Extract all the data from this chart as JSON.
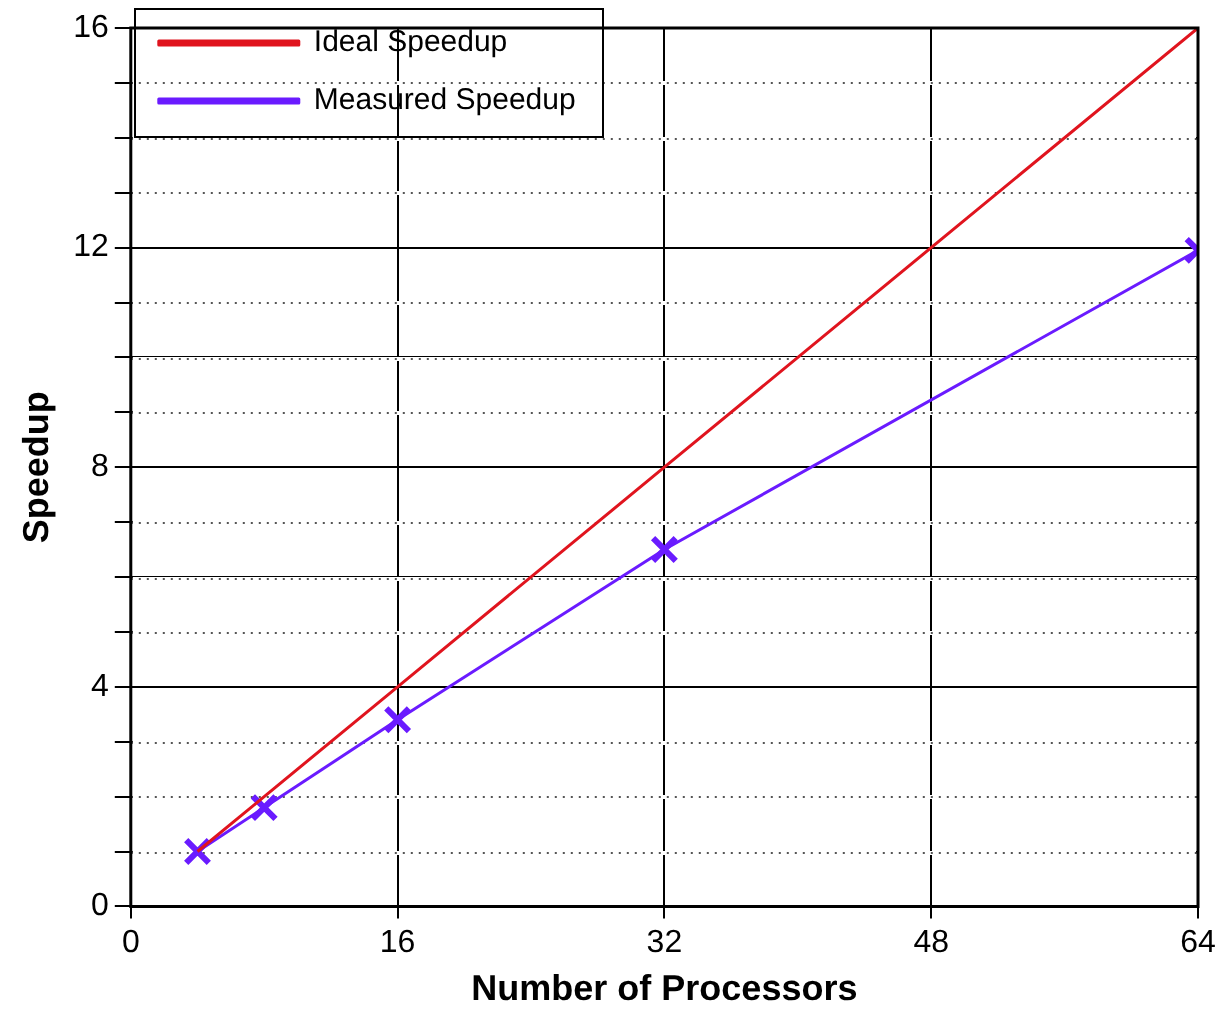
{
  "chart_data": {
    "type": "line",
    "xlabel": "Number of Processors",
    "ylabel": "Speedup",
    "xlim": [
      0,
      64
    ],
    "xticks": [
      0,
      16,
      32,
      48,
      64
    ],
    "ylim": [
      0,
      16
    ],
    "yticks": [
      0,
      {
        "value": 1,
        "label": null
      },
      {
        "value": 2,
        "label": null
      },
      {
        "value": 3,
        "label": null
      },
      4,
      {
        "value": 5,
        "label": null
      },
      {
        "value": 6,
        "label": null
      },
      {
        "value": 7,
        "label": null
      },
      8,
      {
        "value": 9,
        "label": null
      },
      {
        "value": 10,
        "label": null
      },
      {
        "value": 11,
        "label": null
      },
      12,
      {
        "value": 13,
        "label": null
      },
      {
        "value": 14,
        "label": null
      },
      {
        "value": 15,
        "label": null
      },
      16
    ],
    "grid": true,
    "legend": "top left",
    "line_style": "solid",
    "series": [
      {
        "name": "Ideal Speedup",
        "color": "#e0141e",
        "marker": "none",
        "x": [
          4,
          8,
          16,
          32,
          64
        ],
        "values": [
          1,
          2,
          4,
          8,
          16
        ]
      },
      {
        "name": "Measured Speedup",
        "color": "#6a1bff",
        "marker": "cross",
        "x": [
          4,
          8,
          16,
          32,
          64
        ],
        "values": [
          1,
          1.8,
          3.4,
          6.5,
          11.95
        ]
      }
    ]
  }
}
